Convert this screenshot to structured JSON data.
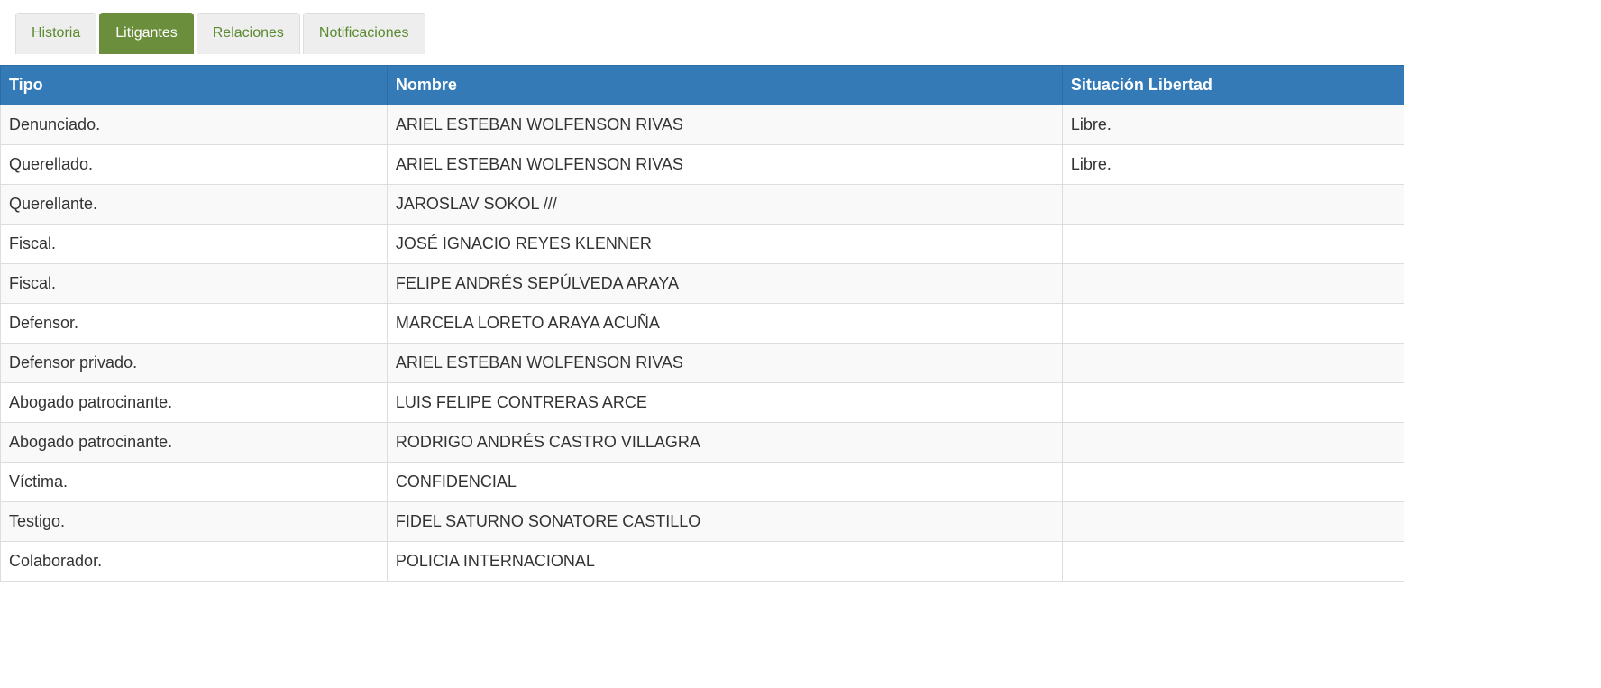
{
  "tabs": {
    "items": [
      "Historia",
      "Litigantes",
      "Relaciones",
      "Notificaciones"
    ],
    "active": 1
  },
  "table": {
    "headers": [
      "Tipo",
      "Nombre",
      "Situación Libertad"
    ],
    "rows": [
      [
        "Denunciado.",
        "ARIEL ESTEBAN WOLFENSON RIVAS",
        "Libre."
      ],
      [
        "Querellado.",
        "ARIEL ESTEBAN WOLFENSON RIVAS",
        "Libre."
      ],
      [
        "Querellante.",
        "JAROSLAV SOKOL ///"
      ],
      [
        "Fiscal.",
        "JOSÉ IGNACIO REYES KLENNER"
      ],
      [
        "Fiscal.",
        "FELIPE ANDRÉS SEPÚLVEDA ARAYA"
      ],
      [
        "Defensor.",
        "MARCELA LORETO ARAYA ACUÑA"
      ],
      [
        "Defensor privado.",
        "ARIEL ESTEBAN WOLFENSON RIVAS"
      ],
      [
        "Abogado patrocinante.",
        "LUIS FELIPE CONTRERAS ARCE"
      ],
      [
        "Abogado patrocinante.",
        "RODRIGO ANDRÉS CASTRO VILLAGRA"
      ],
      [
        "Víctima.",
        "CONFIDENCIAL"
      ],
      [
        "Testigo.",
        "FIDEL SATURNO SONATORE CASTILLO"
      ],
      [
        "Colaborador.",
        "POLICIA INTERNACIONAL"
      ]
    ]
  }
}
